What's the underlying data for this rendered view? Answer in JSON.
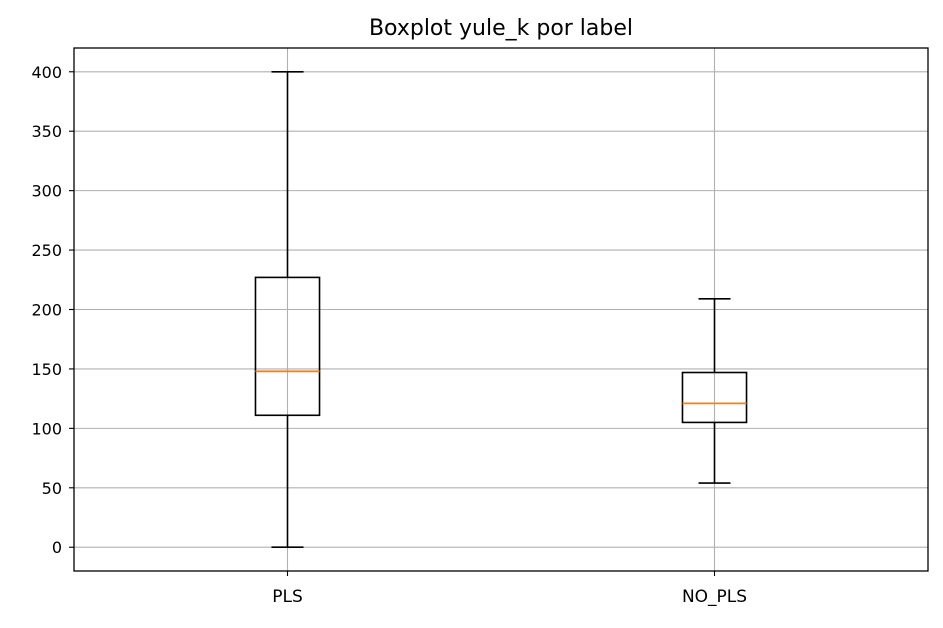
{
  "chart_data": {
    "type": "box",
    "title": "Boxplot yule_k por label",
    "xlabel": "",
    "ylabel": "",
    "categories": [
      "PLS",
      "NO_PLS"
    ],
    "boxes": [
      {
        "category": "PLS",
        "whisker_low": 0,
        "q1": 111,
        "median": 148,
        "q3": 227,
        "whisker_high": 400
      },
      {
        "category": "NO_PLS",
        "whisker_low": 54,
        "q1": 105,
        "median": 121,
        "q3": 147,
        "whisker_high": 209
      }
    ],
    "ylim": [
      -20,
      420
    ],
    "yticks": [
      0,
      50,
      100,
      150,
      200,
      250,
      300,
      350,
      400
    ],
    "grid": true,
    "colors": {
      "box": "#000000",
      "median": "#ff7f0e",
      "grid": "#b0b0b0"
    }
  }
}
